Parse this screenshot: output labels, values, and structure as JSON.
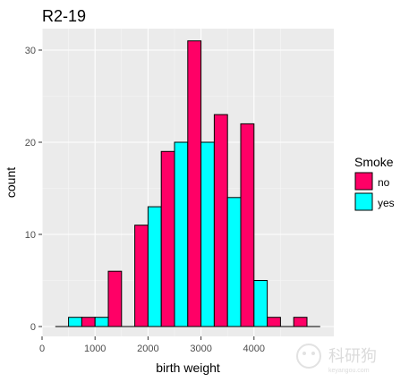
{
  "chart_data": {
    "type": "bar",
    "title": "R2-19",
    "xlabel": "birth weight",
    "ylabel": "count",
    "xlim": [
      0,
      5000
    ],
    "ylim": [
      0,
      33
    ],
    "x_ticks": [
      0,
      1000,
      2000,
      3000,
      4000
    ],
    "y_ticks": [
      0,
      10,
      20,
      30
    ],
    "grid": true,
    "bar_style": "dodged histogram",
    "legend": {
      "title": "Smoke",
      "position": "right"
    },
    "bins": [
      {
        "x0": 250,
        "x1": 750
      },
      {
        "x0": 750,
        "x1": 1250
      },
      {
        "x0": 1250,
        "x1": 1750
      },
      {
        "x0": 1750,
        "x1": 2250
      },
      {
        "x0": 2250,
        "x1": 2750
      },
      {
        "x0": 2750,
        "x1": 3250
      },
      {
        "x0": 3250,
        "x1": 3750
      },
      {
        "x0": 3750,
        "x1": 4250
      },
      {
        "x0": 4250,
        "x1": 4750
      },
      {
        "x0": 4750,
        "x1": 5250
      }
    ],
    "series": [
      {
        "name": "no",
        "color": "#ff0066",
        "values": [
          0,
          1,
          6,
          11,
          19,
          31,
          23,
          22,
          1,
          1
        ]
      },
      {
        "name": "yes",
        "color": "#00ffff",
        "values": [
          1,
          1,
          0,
          13,
          20,
          20,
          14,
          5,
          0,
          0
        ]
      }
    ]
  },
  "watermark": {
    "text": "科研狗",
    "subtext": "keyangou.com"
  }
}
